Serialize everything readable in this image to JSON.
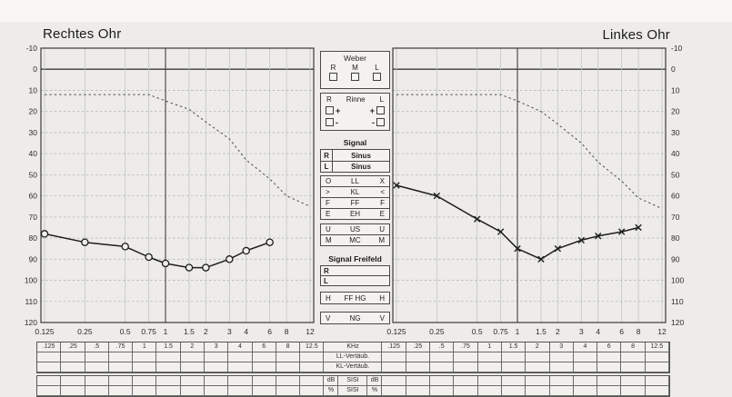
{
  "page": {
    "background": "#eeece9",
    "kind": "audiogram printout scan"
  },
  "axis": {
    "db_labels": [
      "-10",
      "0",
      "10",
      "20",
      "30",
      "40",
      "50",
      "60",
      "70",
      "80",
      "90",
      "100",
      "110",
      "120"
    ],
    "freq_labels": [
      "0.125",
      "0.25",
      "0.5",
      "0.75",
      "1",
      "1.5",
      "2",
      "3",
      "4",
      "6",
      "8",
      "12"
    ],
    "freqs": [
      0.125,
      0.25,
      0.5,
      0.75,
      1,
      1.5,
      2,
      3,
      4,
      6,
      8,
      12
    ]
  },
  "chart_data": [
    {
      "type": "line",
      "title": "Rechtes Ohr",
      "xlabel": "kHz",
      "ylabel": "dB",
      "x_scale": "log2",
      "xlim": [
        0.125,
        12
      ],
      "ylim": [
        -10,
        120
      ],
      "y_inverted": true,
      "grid": true,
      "series": [
        {
          "id": "ll-right-circles",
          "label": "LL (O)",
          "marker": "circle",
          "style": "solid",
          "x": [
            0.125,
            0.25,
            0.5,
            0.75,
            1,
            1.5,
            2,
            3,
            4,
            6
          ],
          "y": [
            78,
            82,
            84,
            89,
            92,
            94,
            94,
            90,
            86,
            82
          ]
        },
        {
          "id": "dashed-curve-right",
          "label": "dashed curve",
          "marker": "none",
          "style": "dashed",
          "x": [
            0.125,
            0.25,
            0.5,
            0.75,
            1,
            1.5,
            2,
            3,
            4,
            6,
            8,
            12
          ],
          "y": [
            12,
            12,
            12,
            12,
            15,
            19,
            25,
            33,
            43,
            52,
            60,
            65
          ]
        }
      ]
    },
    {
      "type": "line",
      "title": "Linkes Ohr",
      "xlabel": "kHz",
      "ylabel": "dB",
      "x_scale": "log2",
      "xlim": [
        0.125,
        12
      ],
      "ylim": [
        -10,
        120
      ],
      "y_inverted": true,
      "grid": true,
      "series": [
        {
          "id": "ll-left-crosses",
          "label": "LL (X)",
          "marker": "x",
          "style": "solid",
          "x": [
            0.125,
            0.25,
            0.5,
            0.75,
            1,
            1.5,
            2,
            3,
            4,
            6,
            8
          ],
          "y": [
            55,
            60,
            71,
            77,
            85,
            90,
            85,
            81,
            79,
            77,
            75
          ]
        },
        {
          "id": "dashed-curve-left",
          "label": "dashed curve",
          "marker": "none",
          "style": "dashed",
          "x": [
            0.125,
            0.25,
            0.5,
            0.75,
            1,
            1.5,
            2,
            3,
            4,
            6,
            8,
            12
          ],
          "y": [
            12,
            12,
            12,
            12,
            15,
            20,
            26,
            35,
            44,
            53,
            61,
            66
          ]
        }
      ]
    }
  ],
  "legend": {
    "weber": {
      "title": "Weber",
      "columns": [
        "R",
        "M",
        "L"
      ]
    },
    "rinne": {
      "title": "Rinne",
      "left_letter": "R",
      "right_letter": "L",
      "rows": [
        {
          "left_sign": "+",
          "right_sign": "+"
        },
        {
          "left_sign": "-",
          "right_sign": "-"
        }
      ]
    },
    "signal": {
      "title": "Signal",
      "rows": [
        {
          "letter": "R",
          "value": "Sinus"
        },
        {
          "letter": "L",
          "value": "Sinus"
        }
      ]
    },
    "symbol_rows": [
      {
        "left": "O",
        "center": "LL",
        "right": "X",
        "gap_before": false
      },
      {
        "left": ">",
        "center": "KL",
        "right": "<",
        "gap_before": false
      },
      {
        "left": "F",
        "center": "FF",
        "right": "F",
        "gap_before": false
      },
      {
        "left": "E",
        "center": "EH",
        "right": "E",
        "gap_before": false
      },
      {
        "left": "U",
        "center": "US",
        "right": "U",
        "gap_before": true
      },
      {
        "left": "M",
        "center": "MC",
        "right": "M",
        "gap_before": false
      }
    ],
    "freifeld": {
      "title": "Signal Freifeld",
      "rows": [
        "R",
        "L"
      ],
      "h_row": {
        "left": "H",
        "center": "FF HG",
        "right": "H"
      },
      "v_row": {
        "left": "V",
        "center": "NG",
        "right": "V"
      }
    }
  },
  "bottom_table": {
    "freq_columns": [
      ".125",
      ".25",
      ".5",
      ".75",
      "1",
      "1.5",
      "2",
      "3",
      "4",
      "6",
      "8",
      "12.5"
    ],
    "center_rows": [
      "KHz",
      "LL-Vertäub.",
      "KL-Vertäub."
    ],
    "sisi_rows": [
      {
        "left": "dB",
        "center": "SISI",
        "right": "dB"
      },
      {
        "left": "%",
        "center": "SISI",
        "right": "%"
      }
    ]
  }
}
